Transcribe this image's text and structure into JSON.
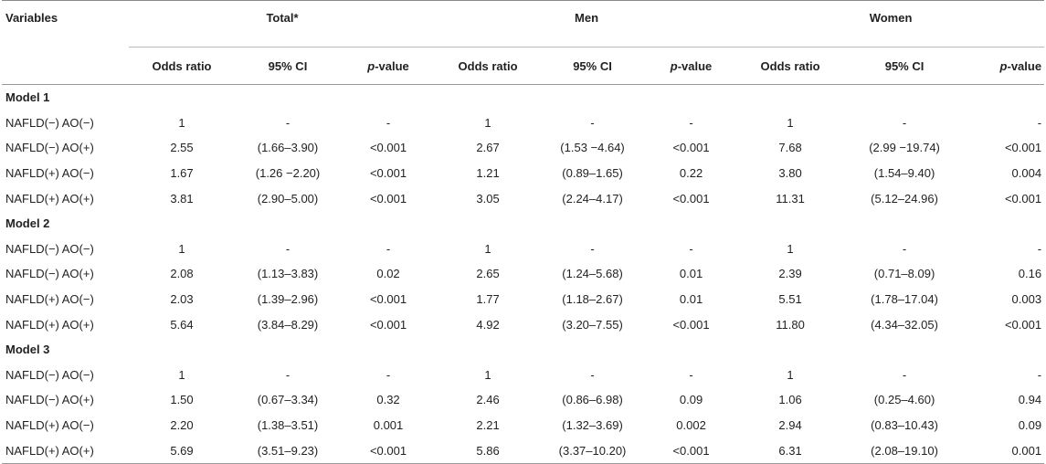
{
  "header": {
    "variables": "Variables",
    "groups": [
      "Total*",
      "Men",
      "Women"
    ],
    "subcols": {
      "odds_ratio": "Odds ratio",
      "ci": "95% CI",
      "p": "p",
      "p_suffix": "-value"
    }
  },
  "models": [
    {
      "name": "Model 1",
      "rows": [
        {
          "label": "NAFLD(−) AO(−)",
          "cells": [
            "1",
            "-",
            "-",
            "1",
            "-",
            "-",
            "1",
            "-",
            "-"
          ]
        },
        {
          "label": "NAFLD(−) AO(+)",
          "cells": [
            "2.55",
            "(1.66–3.90)",
            "<0.001",
            "2.67",
            "(1.53 −4.64)",
            "<0.001",
            "7.68",
            "(2.99 −19.74)",
            "<0.001"
          ]
        },
        {
          "label": "NAFLD(+) AO(−)",
          "cells": [
            "1.67",
            "(1.26 −2.20)",
            "<0.001",
            "1.21",
            "(0.89–1.65)",
            "0.22",
            "3.80",
            "(1.54–9.40)",
            "0.004"
          ]
        },
        {
          "label": "NAFLD(+) AO(+)",
          "cells": [
            "3.81",
            "(2.90–5.00)",
            "<0.001",
            "3.05",
            "(2.24–4.17)",
            "<0.001",
            "11.31",
            "(5.12–24.96)",
            "<0.001"
          ]
        }
      ]
    },
    {
      "name": "Model 2",
      "rows": [
        {
          "label": "NAFLD(−) AO(−)",
          "cells": [
            "1",
            "-",
            "-",
            "1",
            "-",
            "-",
            "1",
            "-",
            "-"
          ]
        },
        {
          "label": "NAFLD(−) AO(+)",
          "cells": [
            "2.08",
            "(1.13–3.83)",
            "0.02",
            "2.65",
            "(1.24–5.68)",
            "0.01",
            "2.39",
            "(0.71–8.09)",
            "0.16"
          ]
        },
        {
          "label": "NAFLD(+) AO(−)",
          "cells": [
            "2.03",
            "(1.39–2.96)",
            "<0.001",
            "1.77",
            "(1.18–2.67)",
            "0.01",
            "5.51",
            "(1.78–17.04)",
            "0.003"
          ]
        },
        {
          "label": "NAFLD(+) AO(+)",
          "cells": [
            "5.64",
            "(3.84–8.29)",
            "<0.001",
            "4.92",
            "(3.20–7.55)",
            "<0.001",
            "11.80",
            "(4.34–32.05)",
            "<0.001"
          ]
        }
      ]
    },
    {
      "name": "Model 3",
      "rows": [
        {
          "label": "NAFLD(−) AO(−)",
          "cells": [
            "1",
            "-",
            "-",
            "1",
            "-",
            "-",
            "1",
            "-",
            "-"
          ]
        },
        {
          "label": "NAFLD(−) AO(+)",
          "cells": [
            "1.50",
            "(0.67–3.34)",
            "0.32",
            "2.46",
            "(0.86–6.98)",
            "0.09",
            "1.06",
            "(0.25–4.60)",
            "0.94"
          ]
        },
        {
          "label": "NAFLD(+) AO(−)",
          "cells": [
            "2.20",
            "(1.38–3.51)",
            "0.001",
            "2.21",
            "(1.32–3.69)",
            "0.002",
            "2.94",
            "(0.83–10.43)",
            "0.09"
          ]
        },
        {
          "label": "NAFLD(+) AO(+)",
          "cells": [
            "5.69",
            "(3.51–9.23)",
            "<0.001",
            "5.86",
            "(3.37–10.20)",
            "<0.001",
            "6.31",
            "(2.08–19.10)",
            "0.001"
          ]
        }
      ]
    }
  ]
}
